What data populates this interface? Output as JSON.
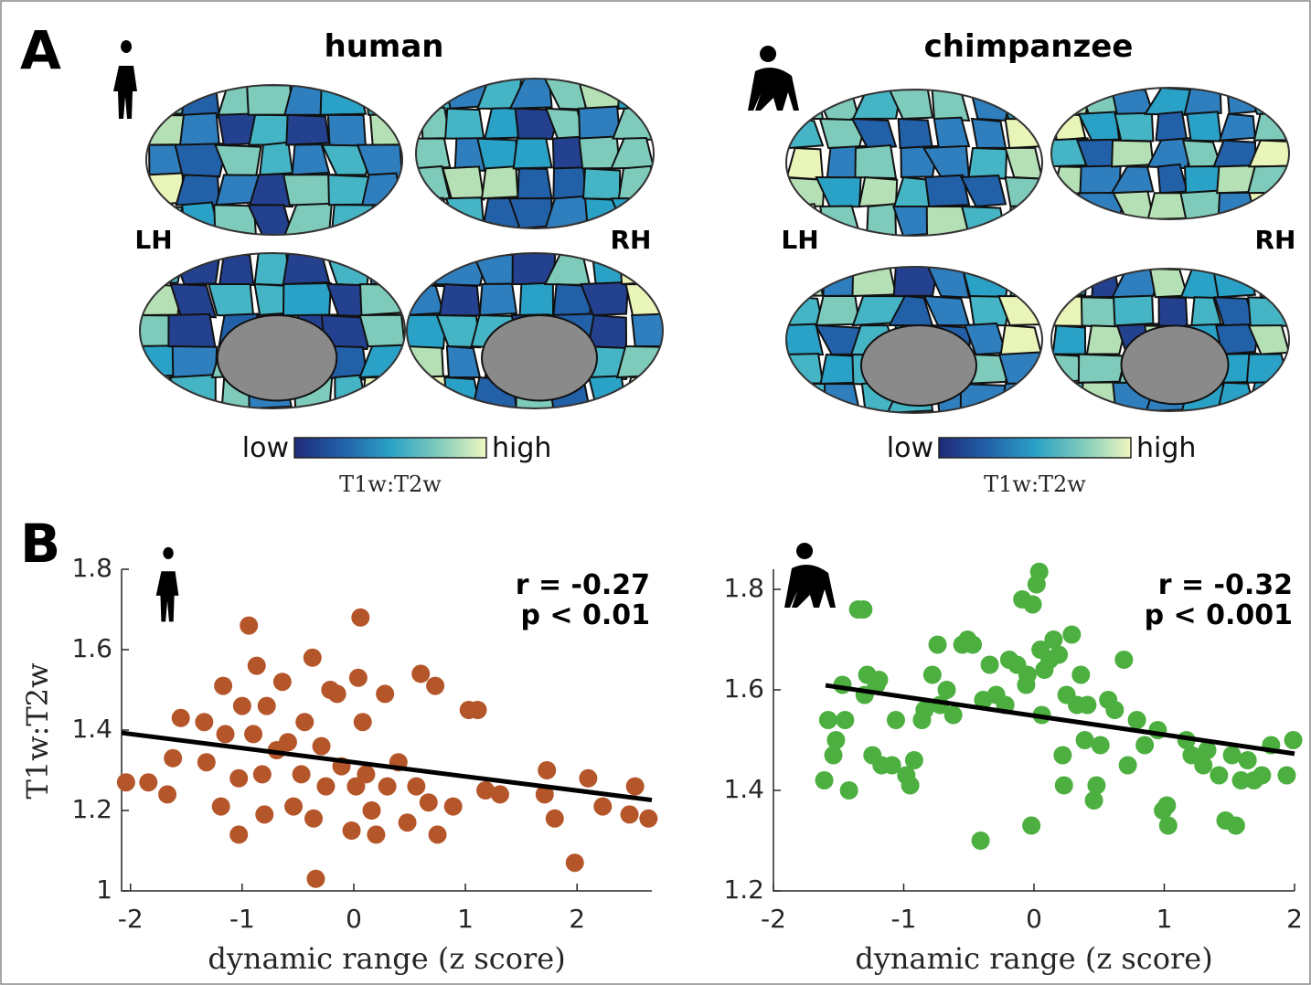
{
  "panel_a": {
    "label": "A",
    "maps": [
      {
        "title": "human",
        "left": "LH",
        "right": "RH",
        "colorbar_low": "low",
        "colorbar_high": "high",
        "colorbar_label": "T1w:T2w"
      },
      {
        "title": "chimpanzee",
        "left": "LH",
        "right": "RH",
        "colorbar_low": "low",
        "colorbar_high": "high",
        "colorbar_label": "T1w:T2w"
      }
    ]
  },
  "panel_b": {
    "label": "B"
  },
  "chart_data": [
    {
      "type": "scatter",
      "color": "#b5562a",
      "xlabel": "dynamic range (z score)",
      "ylabel": "T1w:T2w",
      "annotations": [
        "r = -0.27",
        "p < 0.01"
      ],
      "xlim": [
        -2.08,
        2.67
      ],
      "ylim": [
        1,
        1.8
      ],
      "xticks": [
        -2,
        -1,
        0,
        1,
        2
      ],
      "yticks": [
        1,
        1.2,
        1.4,
        1.6,
        1.8
      ],
      "x": [
        -2.04,
        -1.84,
        -1.67,
        -1.62,
        -1.55,
        -1.32,
        -1.34,
        -1.19,
        -1.17,
        -1.15,
        -1.03,
        -1.03,
        -1.0,
        -0.94,
        -0.87,
        -0.9,
        -0.82,
        -0.8,
        -0.78,
        -0.69,
        -0.64,
        -0.59,
        -0.54,
        -0.47,
        -0.44,
        -0.37,
        -0.36,
        -0.34,
        -0.29,
        -0.25,
        -0.21,
        -0.15,
        -0.11,
        -0.02,
        0.02,
        0.04,
        0.06,
        0.08,
        0.11,
        0.16,
        0.2,
        0.28,
        0.3,
        0.4,
        0.48,
        0.56,
        0.6,
        0.67,
        0.73,
        0.75,
        0.89,
        1.03,
        1.11,
        1.18,
        1.31,
        1.71,
        1.73,
        1.8,
        1.98,
        2.1,
        2.23,
        2.47,
        2.52,
        2.64
      ],
      "values": [
        1.27,
        1.27,
        1.24,
        1.33,
        1.43,
        1.32,
        1.42,
        1.21,
        1.51,
        1.39,
        1.28,
        1.14,
        1.46,
        1.66,
        1.56,
        1.39,
        1.29,
        1.19,
        1.46,
        1.35,
        1.52,
        1.37,
        1.21,
        1.29,
        1.42,
        1.58,
        1.18,
        1.03,
        1.36,
        1.26,
        1.5,
        1.49,
        1.31,
        1.15,
        1.26,
        1.53,
        1.68,
        1.42,
        1.29,
        1.2,
        1.14,
        1.49,
        1.26,
        1.32,
        1.17,
        1.26,
        1.54,
        1.22,
        1.51,
        1.14,
        1.21,
        1.45,
        1.45,
        1.25,
        1.24,
        1.24,
        1.3,
        1.18,
        1.07,
        1.28,
        1.21,
        1.19,
        1.26,
        1.18
      ],
      "fit_line": {
        "x": [
          -2.08,
          2.67
        ],
        "values": [
          1.393,
          1.226
        ]
      }
    },
    {
      "type": "scatter",
      "color": "#4caf3f",
      "xlabel": "dynamic range (z score)",
      "annotations": [
        "r = -0.32",
        "p < 0.001"
      ],
      "xlim": [
        -2,
        2
      ],
      "ylim": [
        1.2,
        1.84
      ],
      "xticks": [
        -2,
        -1,
        0,
        1,
        2
      ],
      "yticks": [
        1.2,
        1.4,
        1.6,
        1.8
      ],
      "x": [
        -1.61,
        -1.58,
        -1.54,
        -1.52,
        -1.47,
        -1.45,
        -1.42,
        -1.35,
        -1.31,
        -1.3,
        -1.28,
        -1.24,
        -1.21,
        -1.19,
        -1.17,
        -1.09,
        -1.06,
        -0.98,
        -0.95,
        -0.92,
        -0.86,
        -0.84,
        -0.78,
        -0.74,
        -0.72,
        -0.67,
        -0.62,
        -0.55,
        -0.51,
        -0.47,
        -0.41,
        -0.39,
        -0.34,
        -0.29,
        -0.22,
        -0.19,
        -0.13,
        -0.09,
        -0.06,
        -0.05,
        -0.02,
        -0.01,
        0.02,
        0.04,
        0.05,
        0.06,
        0.08,
        0.12,
        0.15,
        0.19,
        0.22,
        0.23,
        0.25,
        0.29,
        0.33,
        0.36,
        0.39,
        0.41,
        0.46,
        0.48,
        0.51,
        0.57,
        0.62,
        0.69,
        0.72,
        0.79,
        0.85,
        0.95,
        0.99,
        1.02,
        1.03,
        1.17,
        1.21,
        1.3,
        1.33,
        1.42,
        1.47,
        1.52,
        1.55,
        1.59,
        1.64,
        1.69,
        1.75,
        1.82,
        1.94,
        1.99
      ],
      "values": [
        1.42,
        1.54,
        1.47,
        1.5,
        1.61,
        1.54,
        1.4,
        1.76,
        1.76,
        1.59,
        1.63,
        1.47,
        1.61,
        1.62,
        1.45,
        1.45,
        1.54,
        1.43,
        1.41,
        1.46,
        1.54,
        1.56,
        1.63,
        1.69,
        1.57,
        1.6,
        1.55,
        1.69,
        1.7,
        1.69,
        1.3,
        1.58,
        1.65,
        1.59,
        1.57,
        1.66,
        1.65,
        1.78,
        1.61,
        1.63,
        1.33,
        1.77,
        1.81,
        1.835,
        1.68,
        1.55,
        1.64,
        1.66,
        1.7,
        1.67,
        1.47,
        1.41,
        1.59,
        1.71,
        1.57,
        1.63,
        1.5,
        1.57,
        1.38,
        1.41,
        1.49,
        1.58,
        1.56,
        1.66,
        1.45,
        1.54,
        1.49,
        1.52,
        1.36,
        1.37,
        1.33,
        1.5,
        1.47,
        1.45,
        1.48,
        1.43,
        1.34,
        1.47,
        1.33,
        1.42,
        1.46,
        1.42,
        1.43,
        1.49,
        1.43,
        1.5
      ],
      "fit_line": {
        "x": [
          -1.6,
          2
        ],
        "values": [
          1.609,
          1.473
        ]
      }
    }
  ]
}
